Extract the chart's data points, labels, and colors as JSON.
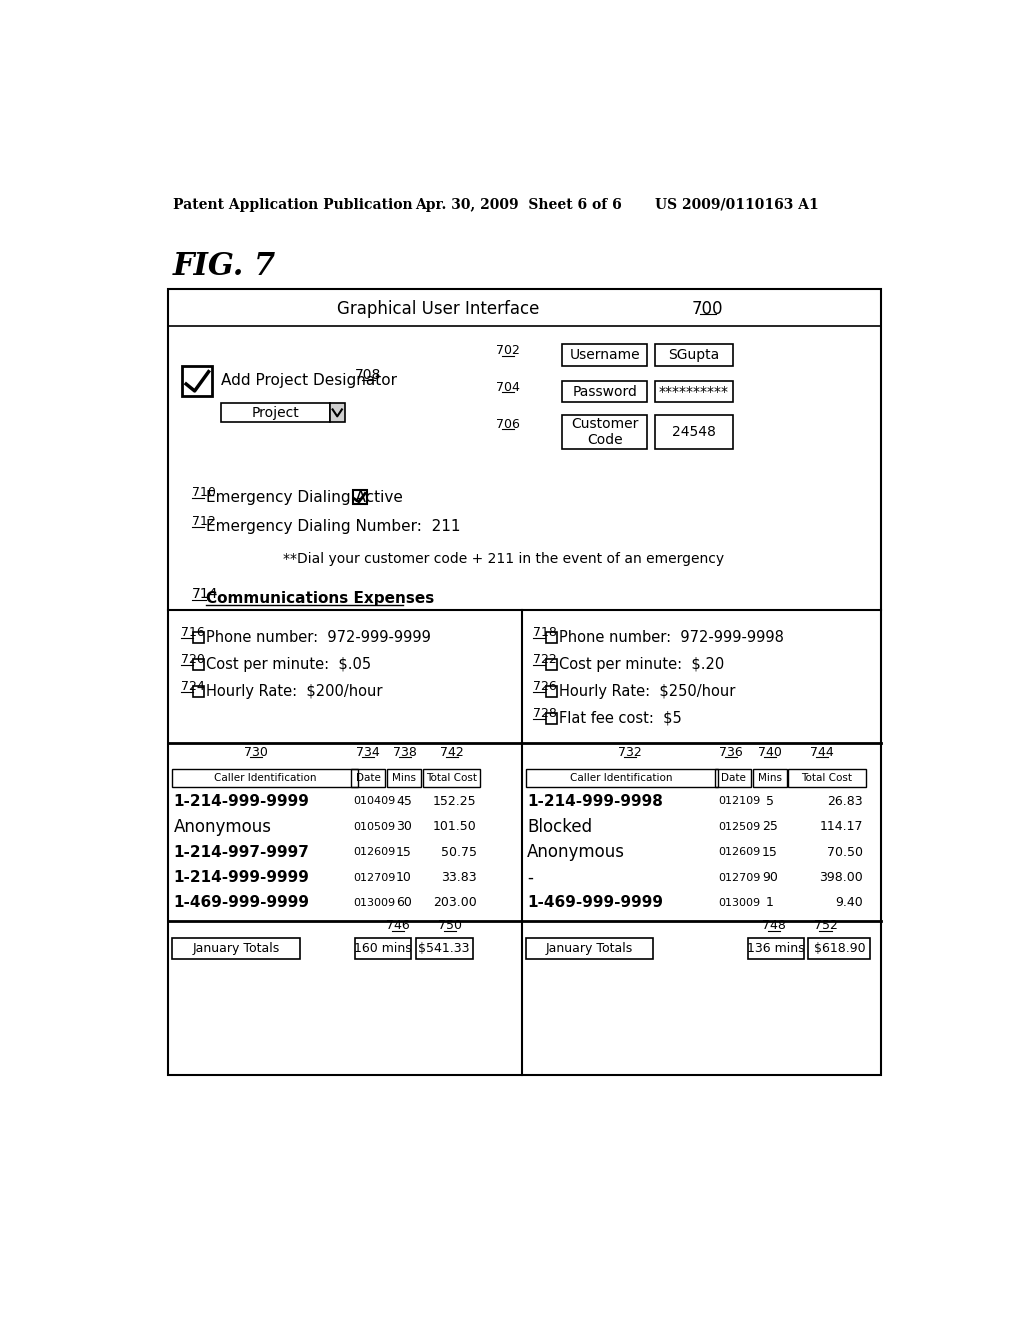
{
  "header_left": "Patent Application Publication",
  "header_mid": "Apr. 30, 2009  Sheet 6 of 6",
  "header_right": "US 2009/0110163 A1",
  "fig_label": "FIG. 7",
  "gui_title": "Graphical User Interface",
  "gui_number": "700",
  "checkbox_label": "Add Project Designator",
  "checkbox_number": "708",
  "project_label": "Project",
  "user_number": "702",
  "user_label": "Username",
  "user_value": "SGupta",
  "pass_number": "704",
  "pass_label": "Password",
  "pass_value": "**********",
  "cust_number": "706",
  "cust_label": "Customer\nCode",
  "cust_value": "24548",
  "emerg_active_number": "710",
  "emerg_active_label": "Emergency Dialing Active",
  "emerg_num_number": "712",
  "emerg_num_label": "Emergency Dialing Number:  211",
  "emerg_note": "**Dial your customer code + 211 in the event of an emergency",
  "comm_exp_number": "714",
  "comm_exp_label": "Communications Expenses",
  "left_phone_num": "716",
  "left_phone_label": "Phone number:  972-999-9999",
  "left_cpm_num": "720",
  "left_cpm_label": "Cost per minute:  $.05",
  "left_hr_num": "724",
  "left_hr_label": "Hourly Rate:  $200/hour",
  "right_phone_num": "718",
  "right_phone_label": "Phone number:  972-999-9998",
  "right_cpm_num": "722",
  "right_cpm_label": "Cost per minute:  $.20",
  "right_hr_num": "726",
  "right_hr_label": "Hourly Rate:  $250/hour",
  "right_flat_num": "728",
  "right_flat_label": "Flat fee cost:  $5",
  "left_col_nums": [
    "730",
    "734",
    "738",
    "742"
  ],
  "left_col_headers": [
    "Caller Identification",
    "Date",
    "Mins",
    "Total Cost"
  ],
  "left_rows": [
    [
      "1-214-999-9999",
      "010409",
      "45",
      "152.25"
    ],
    [
      "Anonymous",
      "010509",
      "30",
      "101.50"
    ],
    [
      "1-214-997-9997",
      "012609",
      "15",
      "50.75"
    ],
    [
      "1-214-999-9999",
      "012709",
      "10",
      "33.83"
    ],
    [
      "1-469-999-9999",
      "013009",
      "60",
      "203.00"
    ]
  ],
  "right_col_nums": [
    "732",
    "736",
    "740",
    "744"
  ],
  "right_col_headers": [
    "Caller Identification",
    "Date",
    "Mins",
    "Total Cost"
  ],
  "right_rows": [
    [
      "1-214-999-9998",
      "012109",
      "5",
      "26.83"
    ],
    [
      "Blocked",
      "012509",
      "25",
      "114.17"
    ],
    [
      "Anonymous",
      "012609",
      "15",
      "70.50"
    ],
    [
      "-",
      "012709",
      "90",
      "398.00"
    ],
    [
      "1-469-999-9999",
      "013009",
      "1",
      "9.40"
    ]
  ],
  "left_tot_num1": "746",
  "left_tot_num2": "750",
  "left_tot_label": "January Totals",
  "left_tot_mins": "160 mins",
  "left_tot_cost": "$541.33",
  "right_tot_num1": "748",
  "right_tot_num2": "752",
  "right_tot_label": "January Totals",
  "right_tot_mins": "136 mins",
  "right_tot_cost": "$618.90",
  "bg_color": "#ffffff",
  "text_color": "#000000"
}
